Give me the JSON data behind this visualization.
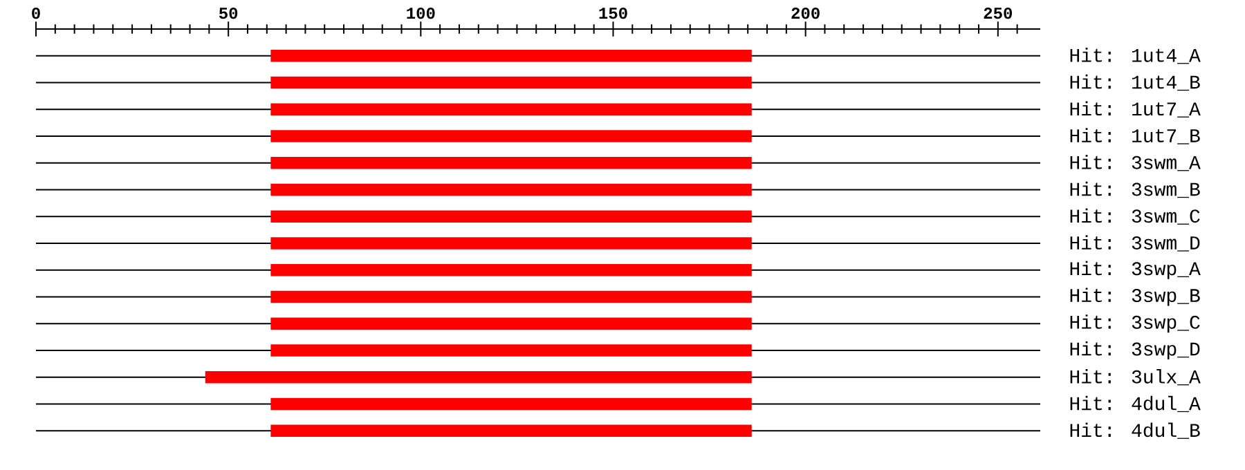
{
  "chart_data": {
    "type": "bar",
    "orientation": "horizontal",
    "color": "#ff0000",
    "grid": "y",
    "categories": [
      "Hit: 1ut4_A",
      "Hit: 1ut4_B",
      "Hit: 1ut7_A",
      "Hit: 1ut7_B",
      "Hit: 3swm_A",
      "Hit: 3swm_B",
      "Hit: 3swm_C",
      "Hit: 3swm_D",
      "Hit: 3swp_A",
      "Hit: 3swp_B",
      "Hit: 3swp_C",
      "Hit: 3swp_D",
      "Hit: 3ulx_A",
      "Hit: 4dul_A",
      "Hit: 4dul_B"
    ],
    "base": [
      61,
      61,
      61,
      61,
      61,
      61,
      61,
      61,
      61,
      61,
      61,
      61,
      44,
      61,
      61
    ],
    "values": [
      125,
      125,
      125,
      125,
      125,
      125,
      125,
      125,
      125,
      125,
      125,
      125,
      142,
      125,
      125
    ],
    "xlim": [
      0,
      261
    ],
    "xticks": [
      0,
      {
        "value": 5,
        "label": null
      },
      {
        "value": 10,
        "label": null
      },
      {
        "value": 15,
        "label": null
      },
      {
        "value": 20,
        "label": null
      },
      {
        "value": 25,
        "label": null
      },
      {
        "value": 30,
        "label": null
      },
      {
        "value": 35,
        "label": null
      },
      {
        "value": 40,
        "label": null
      },
      {
        "value": 45,
        "label": null
      },
      50,
      {
        "value": 55,
        "label": null
      },
      {
        "value": 60,
        "label": null
      },
      {
        "value": 65,
        "label": null
      },
      {
        "value": 70,
        "label": null
      },
      {
        "value": 75,
        "label": null
      },
      {
        "value": 80,
        "label": null
      },
      {
        "value": 85,
        "label": null
      },
      {
        "value": 90,
        "label": null
      },
      {
        "value": 95,
        "label": null
      },
      100,
      {
        "value": 105,
        "label": null
      },
      {
        "value": 110,
        "label": null
      },
      {
        "value": 115,
        "label": null
      },
      {
        "value": 120,
        "label": null
      },
      {
        "value": 125,
        "label": null
      },
      {
        "value": 130,
        "label": null
      },
      {
        "value": 135,
        "label": null
      },
      {
        "value": 140,
        "label": null
      },
      {
        "value": 145,
        "label": null
      },
      150,
      {
        "value": 155,
        "label": null
      },
      {
        "value": 160,
        "label": null
      },
      {
        "value": 165,
        "label": null
      },
      {
        "value": 170,
        "label": null
      },
      {
        "value": 175,
        "label": null
      },
      {
        "value": 180,
        "label": null
      },
      {
        "value": 185,
        "label": null
      },
      {
        "value": 190,
        "label": null
      },
      {
        "value": 195,
        "label": null
      },
      200,
      {
        "value": 205,
        "label": null
      },
      {
        "value": 210,
        "label": null
      },
      {
        "value": 215,
        "label": null
      },
      {
        "value": 220,
        "label": null
      },
      {
        "value": 225,
        "label": null
      },
      {
        "value": 230,
        "label": null
      },
      {
        "value": 235,
        "label": null
      },
      {
        "value": 240,
        "label": null
      },
      {
        "value": 245,
        "label": null
      },
      250,
      {
        "value": 255,
        "label": null
      }
    ]
  }
}
